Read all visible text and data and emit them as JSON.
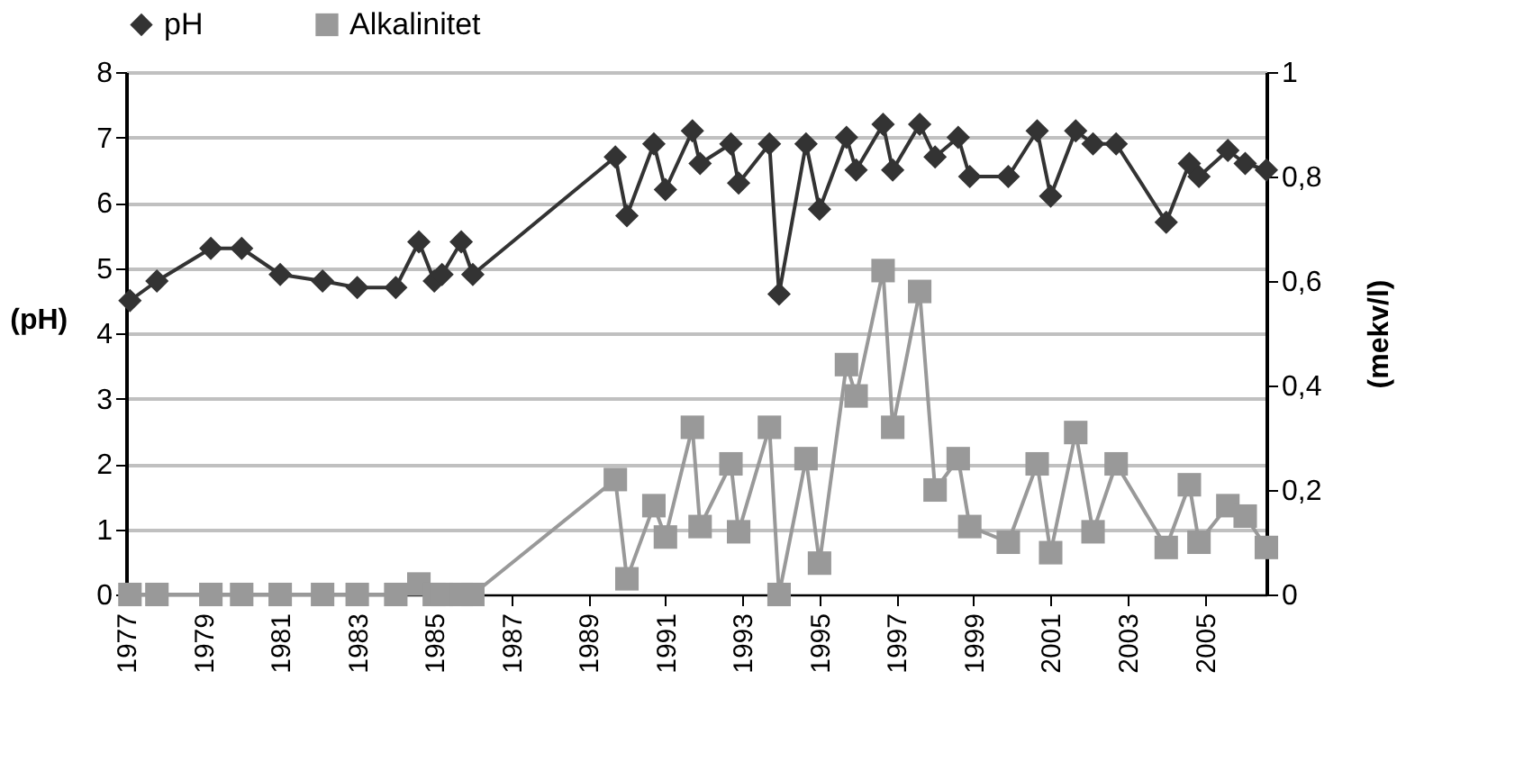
{
  "chart_data": {
    "type": "line",
    "ylabel": "(pH)",
    "y2label": "(mekv/l)",
    "xlim": [
      1977,
      2006.6
    ],
    "xticks": [
      1977,
      1979,
      1981,
      1983,
      1985,
      1987,
      1989,
      1991,
      1993,
      1995,
      1997,
      1999,
      2001,
      2003,
      2005
    ],
    "ylim": [
      0,
      8
    ],
    "yticks": [
      0,
      1,
      2,
      3,
      4,
      5,
      6,
      7,
      8
    ],
    "y2lim": [
      0,
      1
    ],
    "y2ticks": [
      {
        "value": 0,
        "label": "0"
      },
      {
        "value": 0.2,
        "label": "0,2"
      },
      {
        "value": 0.4,
        "label": "0,4"
      },
      {
        "value": 0.6,
        "label": "0,6"
      },
      {
        "value": 0.8,
        "label": "0,8"
      },
      {
        "value": 1,
        "label": "1"
      }
    ],
    "grid": "y",
    "legend": "top",
    "x": [
      1977.1,
      1977.8,
      1979.2,
      1980.0,
      1981.0,
      1982.1,
      1983.0,
      1984.0,
      1984.6,
      1985.0,
      1985.2,
      1985.7,
      1986.0,
      1989.7,
      1990.0,
      1990.7,
      1991.0,
      1991.7,
      1991.9,
      1992.7,
      1992.9,
      1993.7,
      1993.95,
      1994.65,
      1995.0,
      1995.7,
      1995.95,
      1996.65,
      1996.9,
      1997.6,
      1998.0,
      1998.6,
      1998.9,
      1999.9,
      2000.65,
      2001.0,
      2001.65,
      2002.1,
      2002.7,
      2004.0,
      2004.6,
      2004.85,
      2005.6,
      2006.05,
      2006.6
    ],
    "series": [
      {
        "name": "pH",
        "color": "#333333",
        "marker": "diamond",
        "values": [
          4.5,
          4.8,
          5.3,
          5.3,
          4.9,
          4.8,
          4.7,
          4.7,
          5.4,
          4.8,
          4.9,
          5.4,
          4.9,
          6.7,
          5.8,
          6.9,
          6.2,
          7.1,
          6.6,
          6.9,
          6.3,
          6.9,
          4.6,
          6.9,
          5.9,
          7.0,
          6.5,
          7.2,
          6.5,
          7.2,
          6.7,
          7.0,
          6.4,
          6.4,
          7.1,
          6.1,
          7.1,
          6.9,
          6.9,
          5.7,
          6.6,
          6.4,
          6.8,
          6.6,
          6.5
        ]
      },
      {
        "name": "Alkalinitet",
        "color": "#999999",
        "marker": "square",
        "axis": "y2",
        "values": [
          0,
          0,
          0,
          0,
          0,
          0,
          0,
          0,
          0.02,
          0,
          0,
          0,
          0,
          0.22,
          0.03,
          0.17,
          0.11,
          0.32,
          0.13,
          0.25,
          0.12,
          0.32,
          0,
          0.26,
          0.06,
          0.44,
          0.38,
          0.62,
          0.32,
          0.58,
          0.2,
          0.26,
          0.13,
          0.1,
          0.25,
          0.08,
          0.31,
          0.12,
          0.25,
          0.09,
          0.21,
          0.1,
          0.17,
          0.15,
          0.09
        ]
      }
    ]
  }
}
